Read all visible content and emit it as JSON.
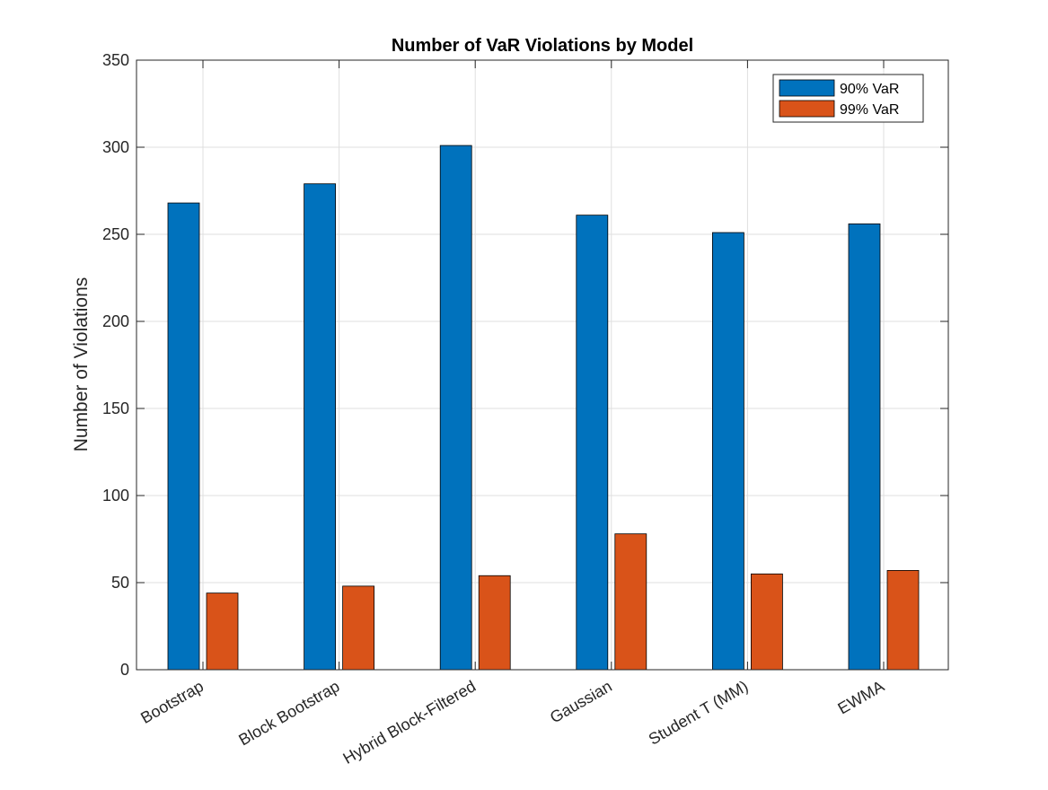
{
  "chart_data": {
    "type": "bar",
    "title": "Number of VaR Violations by Model",
    "xlabel": "",
    "ylabel": "Number of Violations",
    "categories": [
      "Bootstrap",
      "Block Bootstrap",
      "Hybrid Block-Filtered",
      "Gaussian",
      "Student T (MM)",
      "EWMA"
    ],
    "series": [
      {
        "name": "90% VaR",
        "color": "#0072BD",
        "values": [
          268,
          279,
          301,
          261,
          251,
          256
        ]
      },
      {
        "name": "99% VaR",
        "color": "#D95319",
        "values": [
          44,
          48,
          54,
          78,
          55,
          57
        ]
      }
    ],
    "ylim": [
      0,
      350
    ],
    "yticks": [
      0,
      50,
      100,
      150,
      200,
      250,
      300,
      350
    ],
    "grid": true,
    "legend_position": "top-right"
  }
}
